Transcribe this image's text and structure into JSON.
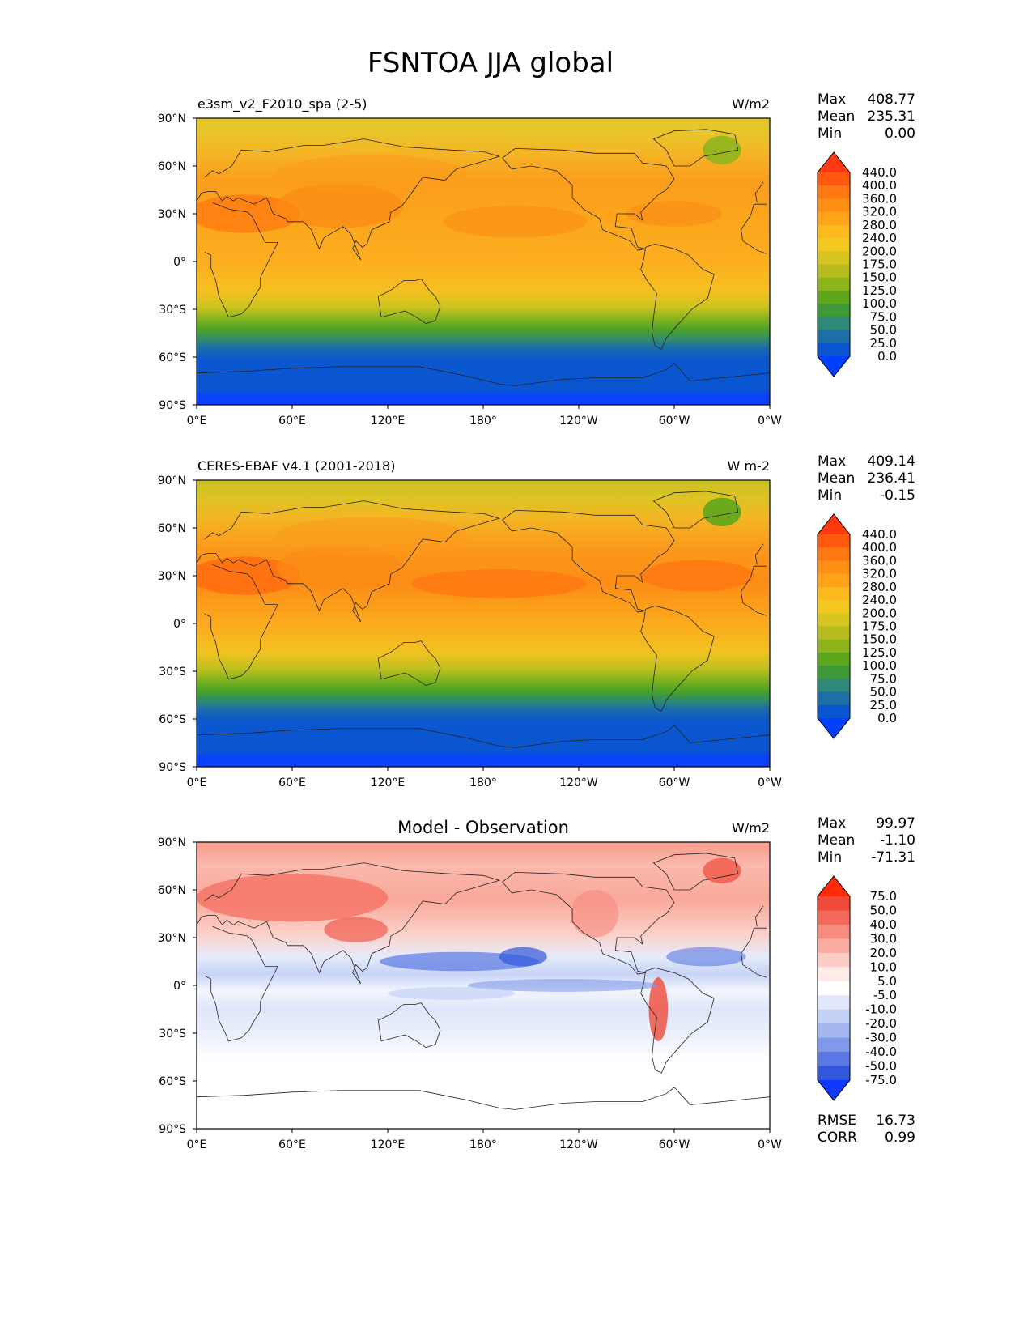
{
  "figure": {
    "title": "FSNTOA JJA global"
  },
  "x_ticks": [
    "0°E",
    "60°E",
    "120°E",
    "180°",
    "120°W",
    "60°W",
    "0°W"
  ],
  "y_ticks": [
    "90°N",
    "60°N",
    "30°N",
    "0°",
    "30°S",
    "60°S",
    "90°S"
  ],
  "panels": [
    {
      "left_title": "e3sm_v2_F2010_spa (2-5)",
      "center_title": "",
      "units": "W/m2",
      "stats": [
        {
          "label": "Max",
          "value": "408.77"
        },
        {
          "label": "Mean",
          "value": "235.31"
        },
        {
          "label": "Min",
          "value": "0.00"
        }
      ],
      "colorbar": {
        "labels": [
          "440.0",
          "400.0",
          "360.0",
          "320.0",
          "280.0",
          "240.0",
          "200.0",
          "175.0",
          "150.0",
          "125.0",
          "100.0",
          "75.0",
          "50.0",
          "25.0",
          "0.0"
        ],
        "colors": [
          "#ff3a10",
          "#ff5a10",
          "#ff7812",
          "#ff8e14",
          "#ffa41a",
          "#fcb81c",
          "#f3c81f",
          "#d6c61f",
          "#b7bc1e",
          "#8fb51d",
          "#5ea61c",
          "#3e9a38",
          "#2f8878",
          "#1e6ea8",
          "#0a55d0",
          "#0040ff"
        ]
      },
      "map": {
        "type": "absolute"
      },
      "extra_stats": []
    },
    {
      "left_title": "CERES-EBAF v4.1 (2001-2018)",
      "center_title": "",
      "units": "W m-2",
      "stats": [
        {
          "label": "Max",
          "value": "409.14"
        },
        {
          "label": "Mean",
          "value": "236.41"
        },
        {
          "label": "Min",
          "value": "-0.15"
        }
      ],
      "colorbar": {
        "labels": [
          "440.0",
          "400.0",
          "360.0",
          "320.0",
          "280.0",
          "240.0",
          "200.0",
          "175.0",
          "150.0",
          "125.0",
          "100.0",
          "75.0",
          "50.0",
          "25.0",
          "0.0"
        ],
        "colors": [
          "#ff3a10",
          "#ff5a10",
          "#ff7812",
          "#ff8e14",
          "#ffa41a",
          "#fcb81c",
          "#f3c81f",
          "#d6c61f",
          "#b7bc1e",
          "#8fb51d",
          "#5ea61c",
          "#3e9a38",
          "#2f8878",
          "#1e6ea8",
          "#0a55d0",
          "#0040ff"
        ]
      },
      "map": {
        "type": "absolute"
      },
      "extra_stats": []
    },
    {
      "left_title": "",
      "center_title": "Model - Observation",
      "units": "W/m2",
      "stats": [
        {
          "label": "Max",
          "value": "99.97"
        },
        {
          "label": "Mean",
          "value": "-1.10"
        },
        {
          "label": "Min",
          "value": "-71.31"
        }
      ],
      "colorbar": {
        "labels": [
          "75.0",
          "50.0",
          "40.0",
          "30.0",
          "20.0",
          "10.0",
          "5.0",
          "-5.0",
          "-10.0",
          "-20.0",
          "-30.0",
          "-40.0",
          "-50.0",
          "-75.0"
        ],
        "colors": [
          "#ff2a0a",
          "#ef4a3a",
          "#f36a5c",
          "#f78b7e",
          "#faaca2",
          "#fccdc6",
          "#feeae6",
          "#ffffff",
          "#e2e8fb",
          "#c4d1f6",
          "#a3b6f0",
          "#8099ea",
          "#5a78e3",
          "#3257dc",
          "#1038ff"
        ]
      },
      "map": {
        "type": "difference"
      },
      "extra_stats": [
        {
          "label": "RMSE",
          "value": "16.73"
        },
        {
          "label": "CORR",
          "value": "0.99"
        }
      ]
    }
  ],
  "chart_data": [
    {
      "type": "heatmap",
      "title": "e3sm_v2_F2010_spa (2-5)",
      "units": "W/m2",
      "xlim": [
        0,
        360
      ],
      "ylim": [
        -90,
        90
      ],
      "x_tick_labels": [
        "0°E",
        "60°E",
        "120°E",
        "180°",
        "120°W",
        "60°W",
        "0°W"
      ],
      "y_tick_labels": [
        "90°N",
        "60°N",
        "30°N",
        "0°",
        "30°S",
        "60°S",
        "90°S"
      ],
      "zonal_mean_profile": {
        "lat": [
          90,
          75,
          60,
          45,
          30,
          15,
          0,
          -15,
          -30,
          -45,
          -60,
          -75,
          -90
        ],
        "value": [
          210,
          230,
          260,
          300,
          310,
          300,
          280,
          260,
          200,
          110,
          40,
          20,
          10
        ]
      },
      "stats": {
        "max": 408.77,
        "mean": 235.31,
        "min": 0.0
      },
      "levels": [
        0,
        25,
        50,
        75,
        100,
        125,
        150,
        175,
        200,
        240,
        280,
        320,
        360,
        400,
        440
      ]
    },
    {
      "type": "heatmap",
      "title": "CERES-EBAF v4.1 (2001-2018)",
      "units": "W m-2",
      "xlim": [
        0,
        360
      ],
      "ylim": [
        -90,
        90
      ],
      "x_tick_labels": [
        "0°E",
        "60°E",
        "120°E",
        "180°",
        "120°W",
        "60°W",
        "0°W"
      ],
      "y_tick_labels": [
        "90°N",
        "60°N",
        "30°N",
        "0°",
        "30°S",
        "60°S",
        "90°S"
      ],
      "zonal_mean_profile": {
        "lat": [
          90,
          75,
          60,
          45,
          30,
          15,
          0,
          -15,
          -30,
          -45,
          -60,
          -75,
          -90
        ],
        "value": [
          200,
          225,
          260,
          300,
          320,
          310,
          280,
          260,
          200,
          110,
          40,
          20,
          10
        ]
      },
      "stats": {
        "max": 409.14,
        "mean": 236.41,
        "min": -0.15
      },
      "levels": [
        0,
        25,
        50,
        75,
        100,
        125,
        150,
        175,
        200,
        240,
        280,
        320,
        360,
        400,
        440
      ]
    },
    {
      "type": "heatmap",
      "title": "Model - Observation",
      "units": "W/m2",
      "xlim": [
        0,
        360
      ],
      "ylim": [
        -90,
        90
      ],
      "x_tick_labels": [
        "0°E",
        "60°E",
        "120°E",
        "180°",
        "120°W",
        "60°W",
        "0°W"
      ],
      "y_tick_labels": [
        "90°N",
        "60°N",
        "30°N",
        "0°",
        "30°S",
        "60°S",
        "90°S"
      ],
      "stats": {
        "max": 99.97,
        "mean": -1.1,
        "min": -71.31,
        "rmse": 16.73,
        "corr": 0.99
      },
      "levels": [
        -75,
        -50,
        -40,
        -30,
        -20,
        -10,
        -5,
        5,
        10,
        20,
        30,
        40,
        50,
        75
      ]
    }
  ]
}
